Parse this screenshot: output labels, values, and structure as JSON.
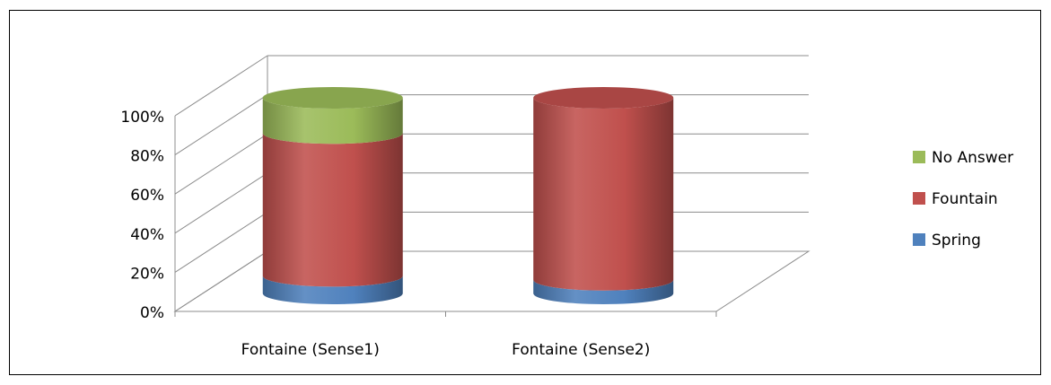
{
  "chart_data": {
    "type": "bar",
    "stacked": true,
    "percent_stacked": true,
    "three_d": true,
    "bar_shape": "cylinder",
    "categories": [
      "Fontaine (Sense1)",
      "Fontaine (Sense2)"
    ],
    "series": [
      {
        "name": "Spring",
        "values": [
          9,
          7
        ],
        "color": "#4f81bd"
      },
      {
        "name": "Fountain",
        "values": [
          73,
          93
        ],
        "color": "#c0504d"
      },
      {
        "name": "No Answer",
        "values": [
          18,
          0
        ],
        "color": "#9bbb59"
      }
    ],
    "yticks": [
      "0%",
      "20%",
      "40%",
      "60%",
      "80%",
      "100%"
    ],
    "ylim": [
      0,
      100
    ],
    "grid": true,
    "legend": {
      "placement": "right",
      "order": [
        "No Answer",
        "Fountain",
        "Spring"
      ]
    },
    "title": "",
    "xlabel": "",
    "ylabel": ""
  }
}
